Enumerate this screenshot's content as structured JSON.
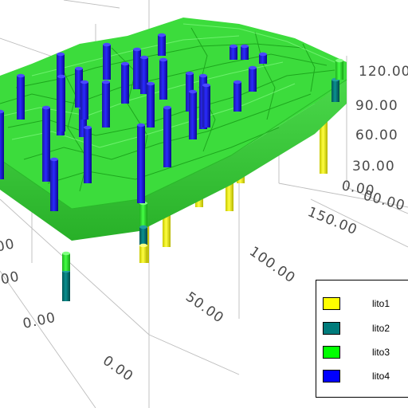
{
  "chart_data": {
    "type": "3d-surface",
    "z_ticks": [
      "120.00",
      "90.00",
      "60.00",
      "30.00",
      "0.00"
    ],
    "x_ticks": [
      "0.00",
      "50.00",
      "100.00",
      "150.00"
    ],
    "y_ticks": [
      "0.00",
      ".00"
    ],
    "z_axis_extra": "00.00",
    "grid": true,
    "legend_position": "bottom-right",
    "legend": [
      {
        "label": "lito1",
        "color": "#ffff00"
      },
      {
        "label": "lito2",
        "color": "#007b7b"
      },
      {
        "label": "lito3",
        "color": "#00ff00"
      },
      {
        "label": "lito4",
        "color": "#0000ff"
      }
    ]
  }
}
